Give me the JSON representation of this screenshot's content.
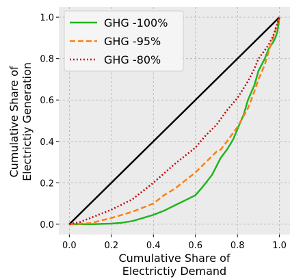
{
  "chart_data": {
    "type": "line",
    "xlabel": [
      "Cumulative Share of",
      "Electrictiy Demand"
    ],
    "ylabel": [
      "Cumulative Share of",
      "Electrictiy Generation"
    ],
    "xlim": [
      -0.05,
      1.05
    ],
    "ylim": [
      -0.05,
      1.05
    ],
    "xticks": [
      0.0,
      0.2,
      0.4,
      0.6,
      0.8,
      1.0
    ],
    "yticks": [
      0.0,
      0.2,
      0.4,
      0.6,
      0.8,
      1.0
    ],
    "xtick_labels": [
      "0.0",
      "0.2",
      "0.4",
      "0.6",
      "0.8",
      "1.0"
    ],
    "ytick_labels": [
      "0.0",
      "0.2",
      "0.4",
      "0.6",
      "0.8",
      "1.0"
    ],
    "grid": true,
    "legend_position": "top-left",
    "background": "#ebebeb",
    "equality_line": {
      "x": [
        0.0,
        1.0
      ],
      "y": [
        0.0,
        1.0
      ],
      "color": "#000000"
    },
    "series": [
      {
        "name": "GHG -100%",
        "color": "#1fb51f",
        "dash": "solid",
        "x": [
          0.0,
          0.1,
          0.2,
          0.25,
          0.3,
          0.35,
          0.4,
          0.45,
          0.5,
          0.55,
          0.6,
          0.63,
          0.65,
          0.68,
          0.7,
          0.72,
          0.75,
          0.78,
          0.8,
          0.83,
          0.85,
          0.88,
          0.9,
          0.93,
          0.95,
          0.97,
          0.98,
          0.99,
          1.0
        ],
        "y": [
          0.0,
          0.0,
          0.003,
          0.007,
          0.015,
          0.03,
          0.045,
          0.065,
          0.09,
          0.115,
          0.14,
          0.175,
          0.2,
          0.24,
          0.28,
          0.32,
          0.36,
          0.41,
          0.46,
          0.53,
          0.6,
          0.67,
          0.74,
          0.8,
          0.85,
          0.88,
          0.9,
          0.93,
          1.0
        ]
      },
      {
        "name": "GHG -95%",
        "color": "#ff7f0e",
        "dash": "dashed",
        "x": [
          0.0,
          0.1,
          0.2,
          0.3,
          0.4,
          0.45,
          0.5,
          0.55,
          0.6,
          0.65,
          0.7,
          0.72,
          0.75,
          0.8,
          0.85,
          0.88,
          0.9,
          0.93,
          0.95,
          0.97,
          1.0
        ],
        "y": [
          0.0,
          0.005,
          0.03,
          0.06,
          0.1,
          0.14,
          0.17,
          0.21,
          0.25,
          0.3,
          0.35,
          0.36,
          0.4,
          0.47,
          0.56,
          0.64,
          0.7,
          0.77,
          0.84,
          0.9,
          1.0
        ]
      },
      {
        "name": "GHG -80%",
        "color": "#c00000",
        "dash": "dotted",
        "x": [
          0.0,
          0.05,
          0.1,
          0.2,
          0.3,
          0.4,
          0.5,
          0.6,
          0.65,
          0.7,
          0.75,
          0.8,
          0.85,
          0.88,
          0.9,
          0.93,
          0.95,
          0.97,
          1.0
        ],
        "y": [
          0.0,
          0.01,
          0.03,
          0.07,
          0.12,
          0.2,
          0.29,
          0.37,
          0.43,
          0.48,
          0.55,
          0.61,
          0.69,
          0.75,
          0.8,
          0.84,
          0.87,
          0.91,
          1.0
        ]
      }
    ]
  }
}
